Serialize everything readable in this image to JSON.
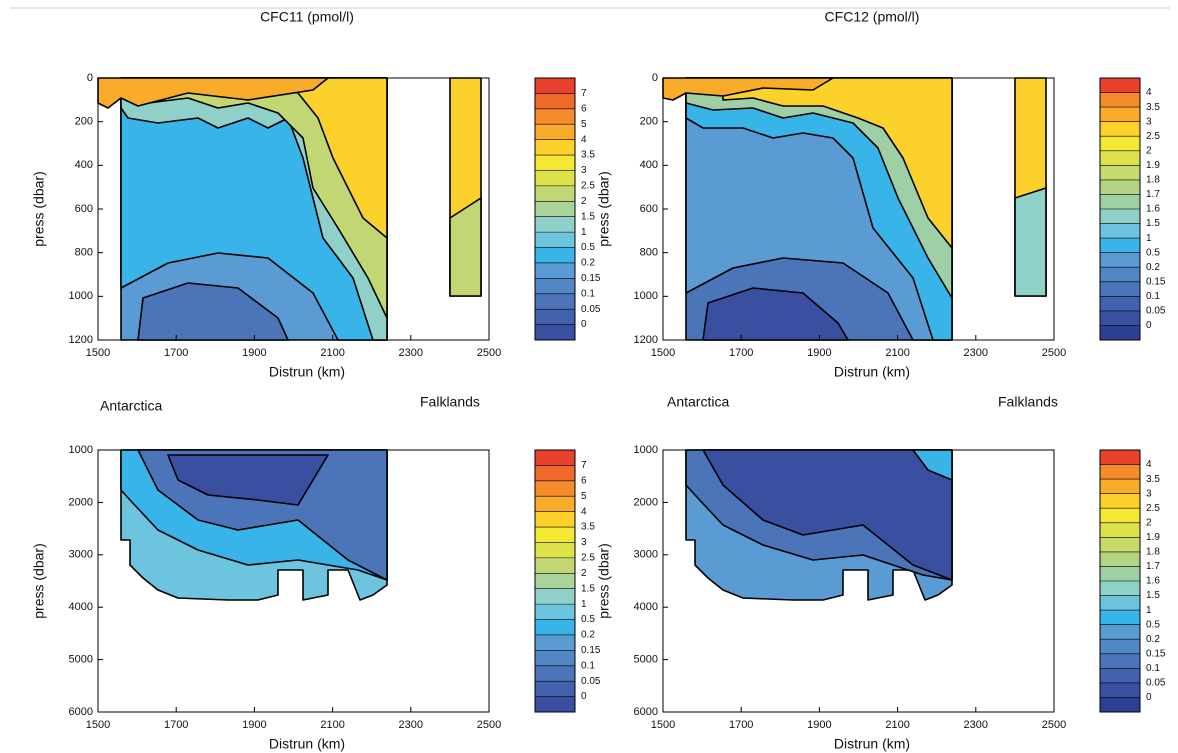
{
  "charts": [
    {
      "type": "contour",
      "title": "CFC11 (pmol/l)",
      "xlabel": "Distrun  (km)",
      "ylabel": "press  (dbar)",
      "xlim": [
        1500,
        2500
      ],
      "ylim": [
        0,
        1200
      ],
      "yinvert": true,
      "xticks": [
        1500,
        1700,
        1900,
        2100,
        2300,
        2500
      ],
      "yticks": [
        0,
        200,
        400,
        600,
        800,
        1000,
        1200
      ],
      "colorbar": {
        "ticks": [
          0,
          0.05,
          0.1,
          0.15,
          0.2,
          0.5,
          1,
          1.5,
          2,
          2.5,
          3,
          3.5,
          4,
          5,
          6,
          7
        ],
        "colors": [
          "#3a4fa0",
          "#4262ad",
          "#4b74b9",
          "#5287c6",
          "#5a9bd4",
          "#39b4e8",
          "#6cc4df",
          "#8fd0c8",
          "#a9d39a",
          "#c2d774",
          "#dde24b",
          "#f5e835",
          "#fcd12b",
          "#f9ac2a",
          "#f68b2a",
          "#f06a2c",
          "#e8422e"
        ]
      }
    },
    {
      "type": "contour",
      "title": "CFC12 (pmol/l)",
      "xlabel": "Distrun  (km)",
      "ylabel": "press  (dbar)",
      "xlim": [
        1500,
        2500
      ],
      "ylim": [
        0,
        1200
      ],
      "yinvert": true,
      "xticks": [
        1500,
        1700,
        1900,
        2100,
        2300,
        2500
      ],
      "yticks": [
        0,
        200,
        400,
        600,
        800,
        1000,
        1200
      ],
      "colorbar": {
        "ticks": [
          0,
          0.05,
          0.1,
          0.15,
          0.2,
          0.5,
          1,
          1.5,
          1.6,
          1.7,
          1.8,
          1.9,
          2,
          2.5,
          3,
          3.5,
          4
        ],
        "colors": [
          "#2d3f94",
          "#3a4fa0",
          "#4262ad",
          "#4b74b9",
          "#5287c6",
          "#5a9bd4",
          "#39b4e8",
          "#6cc4df",
          "#8fd0c8",
          "#9ecfa5",
          "#b3d485",
          "#c8da6a",
          "#dde24b",
          "#f5e835",
          "#fcd12b",
          "#f9ac2a",
          "#f68b2a",
          "#e8422e"
        ]
      }
    },
    {
      "type": "contour",
      "xlabel": "Distrun  (km)",
      "ylabel": "press  (dbar)",
      "annotations": [
        "Antarctica",
        "Falklands"
      ],
      "xlim": [
        1500,
        2500
      ],
      "ylim": [
        1000,
        6000
      ],
      "yinvert": true,
      "xticks": [
        1500,
        1700,
        1900,
        2100,
        2300,
        2500
      ],
      "yticks": [
        1000,
        2000,
        3000,
        4000,
        5000,
        6000
      ],
      "colorbar": {
        "ticks": [
          0,
          0.05,
          0.1,
          0.15,
          0.2,
          0.5,
          1,
          1.5,
          2,
          2.5,
          3,
          3.5,
          4,
          5,
          6,
          7
        ],
        "colors": [
          "#3a4fa0",
          "#4262ad",
          "#4b74b9",
          "#5287c6",
          "#5a9bd4",
          "#39b4e8",
          "#6cc4df",
          "#8fd0c8",
          "#a9d39a",
          "#c2d774",
          "#dde24b",
          "#f5e835",
          "#fcd12b",
          "#f9ac2a",
          "#f68b2a",
          "#f06a2c",
          "#e8422e"
        ]
      }
    },
    {
      "type": "contour",
      "xlabel": "Distrun  (km)",
      "ylabel": "press  (dbar)",
      "annotations": [
        "Antarctica",
        "Falklands"
      ],
      "xlim": [
        1500,
        2500
      ],
      "ylim": [
        1000,
        6000
      ],
      "yinvert": true,
      "xticks": [
        1500,
        1700,
        1900,
        2100,
        2300,
        2500
      ],
      "yticks": [
        1000,
        2000,
        3000,
        4000,
        5000,
        6000
      ],
      "colorbar": {
        "ticks": [
          0,
          0.05,
          0.1,
          0.15,
          0.2,
          0.5,
          1,
          1.5,
          1.6,
          1.7,
          1.8,
          1.9,
          2,
          2.5,
          3,
          3.5,
          4
        ],
        "colors": [
          "#2d3f94",
          "#3a4fa0",
          "#4262ad",
          "#4b74b9",
          "#5287c6",
          "#5a9bd4",
          "#39b4e8",
          "#6cc4df",
          "#8fd0c8",
          "#9ecfa5",
          "#b3d485",
          "#c8da6a",
          "#dde24b",
          "#f5e835",
          "#fcd12b",
          "#f9ac2a",
          "#f68b2a",
          "#e8422e"
        ]
      }
    }
  ]
}
